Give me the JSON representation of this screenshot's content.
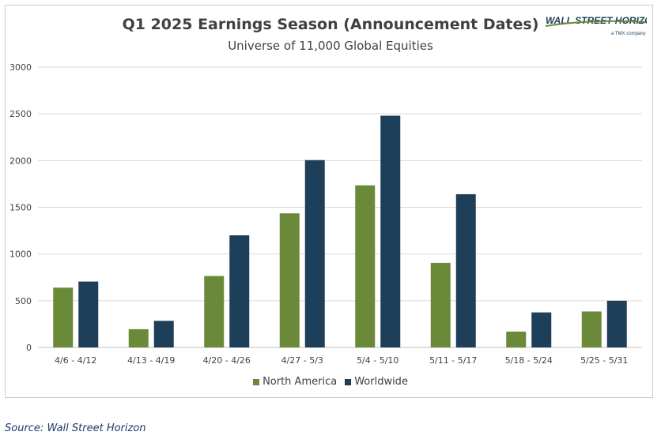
{
  "chart_data": {
    "type": "bar",
    "title": "Q1 2025 Earnings Season (Announcement Dates)",
    "subtitle": "Universe of 11,000 Global Equities",
    "categories": [
      "4/6 - 4/12",
      "4/13 - 4/19",
      "4/20 - 4/26",
      "4/27 - 5/3",
      "5/4 - 5/10",
      "5/11 - 5/17",
      "5/18 - 5/24",
      "5/25 - 5/31"
    ],
    "series": [
      {
        "name": "North America",
        "color": "#6a8a3a",
        "values": [
          640,
          195,
          765,
          1435,
          1735,
          905,
          170,
          385
        ]
      },
      {
        "name": "Worldwide",
        "color": "#1e3f5a",
        "values": [
          705,
          285,
          1200,
          2005,
          2480,
          1640,
          375,
          500
        ]
      }
    ],
    "ylim": [
      0,
      3000
    ],
    "yticks": [
      0,
      500,
      1000,
      1500,
      2000,
      2500,
      3000
    ],
    "ytick_labels": [
      "0",
      "500",
      "1000",
      "1500",
      "2000",
      "2500",
      "3000"
    ],
    "grid": true,
    "legend": "bottom",
    "xlabel": "",
    "ylabel": ""
  },
  "logo": {
    "text": "WALL STREET HORIZON",
    "tagline": "a TMX company"
  },
  "source": "Source: Wall Street Horizon"
}
